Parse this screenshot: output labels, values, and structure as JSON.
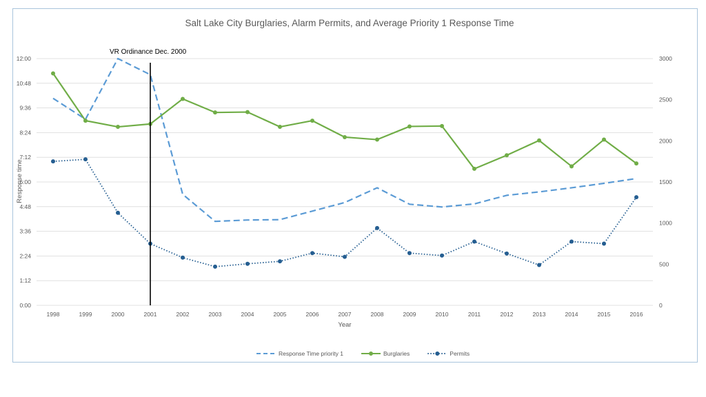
{
  "chart_data": {
    "type": "line",
    "title": "Salt Lake City Burglaries, Alarm Permits, and Average Priority 1 Response Time",
    "xlabel": "Year",
    "ylabel": "Response time",
    "categories": [
      "1998",
      "1999",
      "2000",
      "2001",
      "2002",
      "2003",
      "2004",
      "2005",
      "2006",
      "2007",
      "2008",
      "2009",
      "2010",
      "2011",
      "2012",
      "2013",
      "2014",
      "2015",
      "2016"
    ],
    "y_left": {
      "ticks": [
        "0:00",
        "1:12",
        "2:24",
        "3:36",
        "4:48",
        "6:00",
        "7:12",
        "8:24",
        "9:36",
        "10:48",
        "12:00"
      ],
      "range_minutes": [
        0,
        720
      ]
    },
    "y_right": {
      "ticks": [
        "0",
        "500",
        "1000",
        "1500",
        "2000",
        "2500",
        "3000"
      ],
      "range": [
        0,
        3000
      ]
    },
    "series": [
      {
        "name": "Response Time priority 1",
        "axis": "left",
        "units": "minutes",
        "style": "dashed",
        "color": "#5b9bd5",
        "values": [
          604,
          543,
          720,
          673,
          324,
          245,
          249,
          250,
          275,
          300,
          343,
          295,
          287,
          296,
          321,
          331,
          343,
          356,
          370
        ]
      },
      {
        "name": "Burglaries",
        "axis": "right",
        "style": "solid-markers",
        "color": "#70ad47",
        "values": [
          2820,
          2245,
          2170,
          2205,
          2510,
          2345,
          2350,
          2170,
          2245,
          2045,
          2015,
          2175,
          2180,
          1660,
          1825,
          2005,
          1690,
          2015,
          1725
        ]
      },
      {
        "name": "Permits",
        "axis": "right",
        "style": "dotted-markers",
        "color": "#255e91",
        "values": [
          1750,
          1775,
          1125,
          750,
          580,
          470,
          505,
          535,
          635,
          590,
          940,
          635,
          605,
          775,
          630,
          490,
          775,
          750,
          1315
        ]
      }
    ],
    "annotation": {
      "label": "VR Ordinance Dec. 2000",
      "at_category": "2001"
    },
    "grid": true,
    "legend_position": "bottom"
  }
}
